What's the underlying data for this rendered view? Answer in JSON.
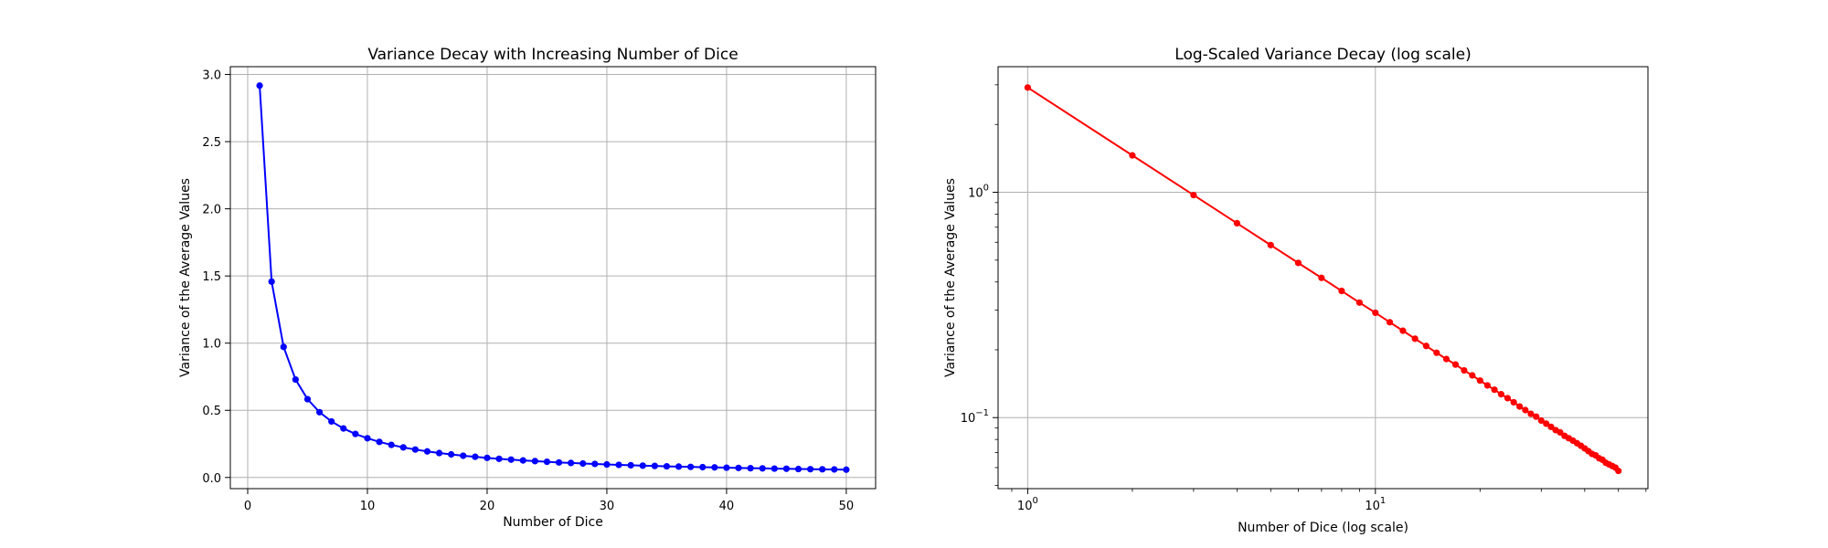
{
  "chart_data": [
    {
      "type": "line",
      "title": "Variance Decay with Increasing Number of Dice",
      "xlabel": "Number of Dice",
      "ylabel": "Variance of the Average Values",
      "xscale": "linear",
      "yscale": "linear",
      "xlim": [
        -1.45,
        52.45
      ],
      "ylim": [
        -0.083,
        3.058
      ],
      "xticks": [
        0,
        10,
        20,
        30,
        40,
        50
      ],
      "xtick_labels": [
        "0",
        "10",
        "20",
        "30",
        "40",
        "50"
      ],
      "yticks": [
        0.0,
        0.5,
        1.0,
        1.5,
        2.0,
        2.5,
        3.0
      ],
      "ytick_labels": [
        "0.0",
        "0.5",
        "1.0",
        "1.5",
        "2.0",
        "2.5",
        "3.0"
      ],
      "grid": true,
      "line_color": "#0000ff",
      "marker": "circle",
      "series": [
        {
          "x": [
            1,
            2,
            3,
            4,
            5,
            6,
            7,
            8,
            9,
            10,
            11,
            12,
            13,
            14,
            15,
            16,
            17,
            18,
            19,
            20,
            21,
            22,
            23,
            24,
            25,
            26,
            27,
            28,
            29,
            30,
            31,
            32,
            33,
            34,
            35,
            36,
            37,
            38,
            39,
            40,
            41,
            42,
            43,
            44,
            45,
            46,
            47,
            48,
            49,
            50
          ],
          "y": [
            2.917,
            1.458,
            0.972,
            0.729,
            0.583,
            0.486,
            0.417,
            0.365,
            0.324,
            0.292,
            0.265,
            0.243,
            0.224,
            0.208,
            0.194,
            0.182,
            0.172,
            0.162,
            0.154,
            0.146,
            0.139,
            0.133,
            0.127,
            0.122,
            0.117,
            0.112,
            0.108,
            0.104,
            0.101,
            0.097,
            0.094,
            0.091,
            0.088,
            0.086,
            0.083,
            0.081,
            0.079,
            0.077,
            0.075,
            0.073,
            0.071,
            0.069,
            0.068,
            0.066,
            0.065,
            0.063,
            0.062,
            0.061,
            0.06,
            0.058
          ]
        }
      ]
    },
    {
      "type": "line",
      "title": "Log-Scaled Variance Decay (log scale)",
      "xlabel": "Number of Dice (log scale)",
      "ylabel": "Variance of the Average Values",
      "xscale": "log",
      "yscale": "log",
      "xlim": [
        0.822,
        60.8
      ],
      "ylim": [
        0.0484,
        3.61
      ],
      "xticks": [
        1,
        10
      ],
      "xtick_labels": [
        "10^0",
        "10^1"
      ],
      "yticks": [
        0.1,
        1
      ],
      "ytick_labels": [
        "10^-1",
        "10^0"
      ],
      "grid": true,
      "line_color": "#ff0000",
      "marker": "circle",
      "series": [
        {
          "x": [
            1,
            2,
            3,
            4,
            5,
            6,
            7,
            8,
            9,
            10,
            11,
            12,
            13,
            14,
            15,
            16,
            17,
            18,
            19,
            20,
            21,
            22,
            23,
            24,
            25,
            26,
            27,
            28,
            29,
            30,
            31,
            32,
            33,
            34,
            35,
            36,
            37,
            38,
            39,
            40,
            41,
            42,
            43,
            44,
            45,
            46,
            47,
            48,
            49,
            50
          ],
          "y": [
            2.917,
            1.458,
            0.972,
            0.729,
            0.583,
            0.486,
            0.417,
            0.365,
            0.324,
            0.292,
            0.265,
            0.243,
            0.224,
            0.208,
            0.194,
            0.182,
            0.172,
            0.162,
            0.154,
            0.146,
            0.139,
            0.133,
            0.127,
            0.122,
            0.117,
            0.112,
            0.108,
            0.104,
            0.101,
            0.097,
            0.094,
            0.091,
            0.088,
            0.086,
            0.083,
            0.081,
            0.079,
            0.077,
            0.075,
            0.073,
            0.071,
            0.069,
            0.068,
            0.066,
            0.065,
            0.063,
            0.062,
            0.061,
            0.06,
            0.058
          ]
        }
      ]
    }
  ]
}
